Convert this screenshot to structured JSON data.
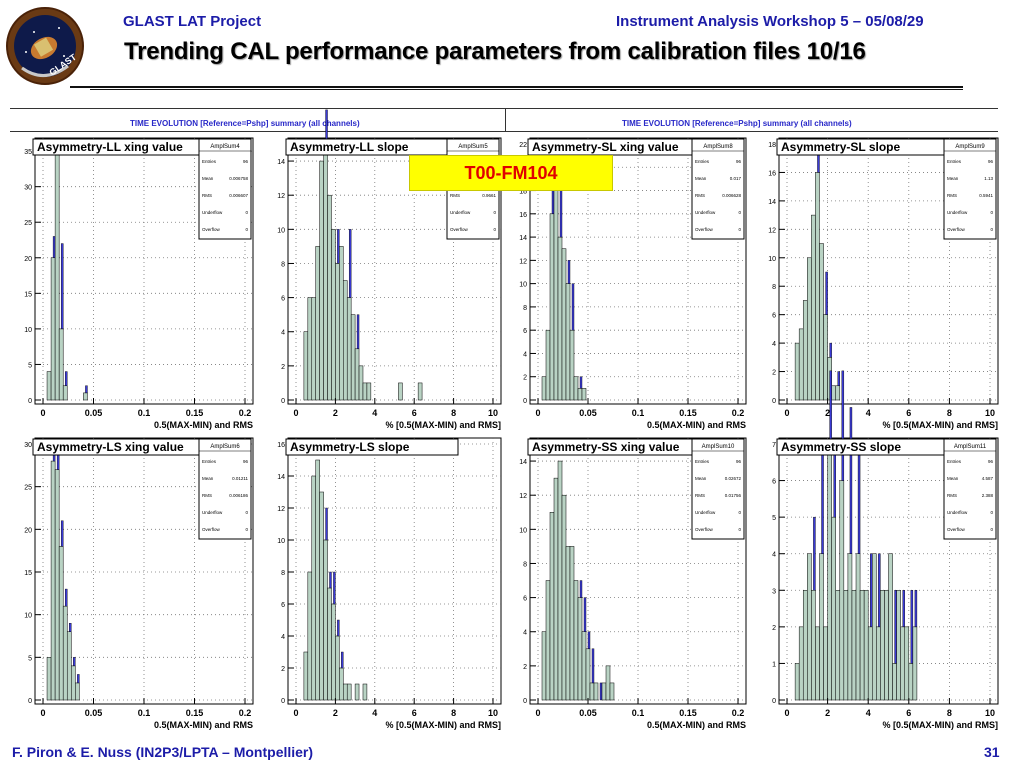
{
  "header": {
    "left": "GLAST LAT Project",
    "right": "Instrument Analysis Workshop 5 – 05/08/29",
    "title": "Trending CAL performance parameters from calibration files 10/16"
  },
  "logo": {
    "icon": "glast-mission-patch",
    "text": "GLAST"
  },
  "strip": {
    "left": "TIME EVOLUTION [Reference=Pshp] summary (all channels)",
    "right": "TIME EVOLUTION [Reference=Pshp] summary (all channels)"
  },
  "tag": "T00-FM104",
  "footer": {
    "left": "F. Piron & E. Nuss  (IN2P3/LPTA – Montpellier)",
    "page": "31"
  },
  "colors": {
    "fill": "#b9d3c4",
    "overflow": "#3b3bd6",
    "text": "#1c1ca8",
    "tag_bg": "#ffff00",
    "tag_fg": "#e00000"
  },
  "chart_data": [
    {
      "type": "bar",
      "title": "Asymmetry-LL xing value",
      "stats": {
        "name": "AmplSum4",
        "rows": [
          [
            "Entries",
            "96"
          ],
          [
            "Mean",
            "0.006758"
          ],
          [
            "RMS",
            "0.006607"
          ],
          [
            "Underflow",
            "0"
          ],
          [
            "Overflow",
            "0"
          ]
        ]
      },
      "xlabel": "0.5(MAX-MIN) and RMS",
      "xlim": [
        0,
        0.2
      ],
      "ylim": [
        0,
        36
      ],
      "xticks": [
        "0",
        "0.05",
        "0.1",
        "0.15",
        "0.2"
      ],
      "yticks": [
        0,
        5,
        10,
        15,
        20,
        25,
        30,
        35
      ],
      "bins": 50,
      "fill_values": [
        0,
        4,
        20,
        36,
        10,
        2,
        0,
        0,
        0,
        0,
        1,
        0
      ],
      "overflow_values": [
        0,
        0,
        3,
        0,
        12,
        2,
        0,
        0,
        0,
        0,
        1,
        0
      ]
    },
    {
      "type": "bar",
      "title": "Asymmetry-LL slope",
      "stats": {
        "name": "AmplSum5",
        "rows": [
          [
            "Entries",
            "96"
          ],
          [
            "Mean",
            ""
          ],
          [
            "RMS",
            "0.9661"
          ],
          [
            "Underflow",
            "0"
          ],
          [
            "Overflow",
            "0"
          ]
        ]
      },
      "xlabel": "% [0.5(MAX-MIN) and RMS]",
      "xlim": [
        0,
        10
      ],
      "ylim": [
        0,
        15
      ],
      "xticks": [
        "0",
        "2",
        "4",
        "6",
        "8",
        "10"
      ],
      "yticks": [
        0,
        2,
        4,
        6,
        8,
        10,
        12,
        14
      ],
      "bins": 50,
      "fill_values": [
        0,
        0,
        4,
        6,
        6,
        9,
        14,
        15,
        12,
        10,
        8,
        9,
        7,
        6,
        5,
        3,
        2,
        1,
        1,
        0,
        0,
        0,
        0,
        0,
        0,
        0,
        1,
        0,
        0,
        0,
        0,
        1
      ],
      "overflow_values": [
        0,
        0,
        0,
        0,
        0,
        0,
        0,
        2,
        0,
        0,
        2,
        0,
        0,
        4,
        0,
        2,
        0,
        0,
        0,
        0,
        0,
        0,
        0,
        0,
        0,
        0,
        0,
        0,
        0,
        0,
        0,
        0
      ]
    },
    {
      "type": "bar",
      "title": "Asymmetry-SL xing value",
      "stats": {
        "name": "AmplSum8",
        "rows": [
          [
            "Entries",
            "96"
          ],
          [
            "Mean",
            "0.017"
          ],
          [
            "RMS",
            "0.006628"
          ],
          [
            "Underflow",
            "0"
          ],
          [
            "Overflow",
            "0"
          ]
        ]
      },
      "xlabel": "0.5(MAX-MIN) and RMS",
      "xlim": [
        0,
        0.2
      ],
      "ylim": [
        0,
        22
      ],
      "xticks": [
        "0",
        "0.05",
        "0.1",
        "0.15",
        "0.2"
      ],
      "yticks": [
        0,
        2,
        4,
        6,
        8,
        10,
        12,
        14,
        16,
        18,
        20,
        22
      ],
      "bins": 50,
      "fill_values": [
        0,
        2,
        6,
        16,
        18,
        14,
        13,
        10,
        6,
        2,
        1,
        1,
        0
      ],
      "overflow_values": [
        0,
        0,
        0,
        3,
        0,
        4,
        0,
        2,
        4,
        0,
        1,
        0,
        0
      ]
    },
    {
      "type": "bar",
      "title": "Asymmetry-SL slope",
      "stats": {
        "name": "AmplSum9",
        "rows": [
          [
            "Entries",
            "96"
          ],
          [
            "Mean",
            "1.13"
          ],
          [
            "RMS",
            "0.5941"
          ],
          [
            "Underflow",
            "0"
          ],
          [
            "Overflow",
            "0"
          ]
        ]
      },
      "xlabel": "% [0.5(MAX-MIN) and RMS]",
      "xlim": [
        0,
        10
      ],
      "ylim": [
        0,
        18
      ],
      "xticks": [
        "0",
        "2",
        "4",
        "6",
        "8",
        "10"
      ],
      "yticks": [
        0,
        2,
        4,
        6,
        8,
        10,
        12,
        14,
        16,
        18
      ],
      "bins": 50,
      "fill_values": [
        0,
        0,
        4,
        5,
        7,
        10,
        13,
        16,
        11,
        6,
        3,
        1,
        1,
        0
      ],
      "overflow_values": [
        0,
        0,
        0,
        0,
        0,
        0,
        0,
        2,
        0,
        3,
        1,
        0,
        1,
        0
      ]
    },
    {
      "type": "bar",
      "title": "Asymmetry-LS xing value",
      "stats": {
        "name": "AmplSum6",
        "rows": [
          [
            "Entries",
            "96"
          ],
          [
            "Mean",
            "0.01211"
          ],
          [
            "RMS",
            "0.006186"
          ],
          [
            "Underflow",
            "0"
          ],
          [
            "Overflow",
            "0"
          ]
        ]
      },
      "xlabel": "0.5(MAX-MIN) and RMS",
      "xlim": [
        0,
        0.2
      ],
      "ylim": [
        0,
        30
      ],
      "xticks": [
        "0",
        "0.05",
        "0.1",
        "0.15",
        "0.2"
      ],
      "yticks": [
        0,
        5,
        10,
        15,
        20,
        25,
        30
      ],
      "bins": 50,
      "fill_values": [
        0,
        5,
        28,
        27,
        18,
        11,
        8,
        4,
        2,
        0
      ],
      "overflow_values": [
        0,
        0,
        2,
        3,
        3,
        2,
        1,
        1,
        1,
        0
      ]
    },
    {
      "type": "bar",
      "title": "Asymmetry-LS slope",
      "stats": {
        "name": "",
        "rows": []
      },
      "xlabel": "% [0.5(MAX-MIN) and RMS]",
      "xlim": [
        0,
        10
      ],
      "ylim": [
        0,
        16
      ],
      "xticks": [
        "0",
        "2",
        "4",
        "6",
        "8",
        "10"
      ],
      "yticks": [
        0,
        2,
        4,
        6,
        8,
        10,
        12,
        14,
        16
      ],
      "bins": 50,
      "fill_values": [
        0,
        0,
        3,
        8,
        14,
        15,
        13,
        10,
        7,
        6,
        4,
        2,
        1,
        1,
        0,
        1,
        0,
        1
      ],
      "overflow_values": [
        0,
        0,
        0,
        0,
        0,
        0,
        0,
        2,
        1,
        2,
        1,
        1,
        0,
        0,
        0,
        0,
        0,
        0
      ]
    },
    {
      "type": "bar",
      "title": "Asymmetry-SS xing value",
      "stats": {
        "name": "AmplSum10",
        "rows": [
          [
            "Entries",
            "96"
          ],
          [
            "Mean",
            "0.02672"
          ],
          [
            "RMS",
            "0.01756"
          ],
          [
            "Underflow",
            "0"
          ],
          [
            "Overflow",
            "0"
          ]
        ]
      },
      "xlabel": "0.5(MAX-MIN) and RMS",
      "xlim": [
        0,
        0.2
      ],
      "ylim": [
        0,
        15
      ],
      "xticks": [
        "0",
        "0.05",
        "0.1",
        "0.15",
        "0.2"
      ],
      "yticks": [
        0,
        2,
        4,
        6,
        8,
        10,
        12,
        14
      ],
      "bins": 50,
      "fill_values": [
        0,
        4,
        7,
        11,
        13,
        14,
        12,
        9,
        9,
        7,
        6,
        4,
        3,
        1,
        1,
        0,
        1,
        2,
        1,
        0
      ],
      "overflow_values": [
        0,
        0,
        0,
        0,
        0,
        0,
        0,
        0,
        0,
        0,
        1,
        2,
        1,
        2,
        0,
        1,
        0,
        0,
        0,
        0
      ]
    },
    {
      "type": "bar",
      "title": "Asymmetry-SS slope",
      "stats": {
        "name": "AmplSum11",
        "rows": [
          [
            "Entries",
            "96"
          ],
          [
            "Mean",
            "4.587"
          ],
          [
            "RMS",
            "2.388"
          ],
          [
            "Underflow",
            "0"
          ],
          [
            "Overflow",
            "0"
          ]
        ]
      },
      "xlabel": "% [0.5(MAX-MIN) and RMS]",
      "xlim": [
        0,
        10
      ],
      "ylim": [
        0,
        7
      ],
      "xticks": [
        "0",
        "2",
        "4",
        "6",
        "8",
        "10"
      ],
      "yticks": [
        0,
        1,
        2,
        3,
        4,
        5,
        6,
        7
      ],
      "bins": 50,
      "fill_values": [
        0,
        0,
        1,
        2,
        3,
        4,
        3,
        2,
        4,
        2,
        7,
        5,
        3,
        6,
        3,
        4,
        3,
        4,
        3,
        3,
        2,
        4,
        2,
        3,
        3,
        4,
        1,
        3,
        2,
        2,
        1,
        2,
        0
      ],
      "overflow_values": [
        0,
        0,
        0,
        0,
        0,
        0,
        2,
        0,
        3,
        0,
        2,
        2,
        0,
        3,
        0,
        4,
        0,
        3,
        0,
        0,
        2,
        0,
        2,
        0,
        0,
        0,
        2,
        0,
        1,
        0,
        2,
        1,
        0
      ]
    }
  ]
}
